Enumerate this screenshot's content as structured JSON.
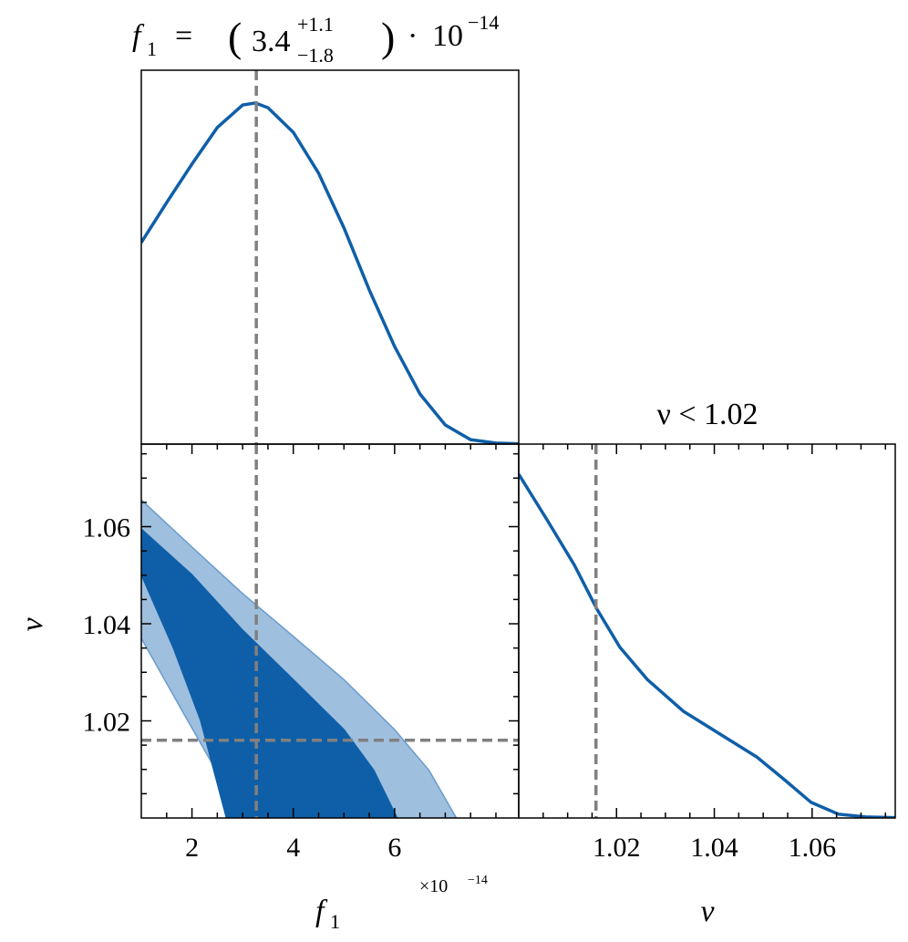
{
  "chart_data": [
    {
      "type": "line",
      "title": {
        "lhs": "f",
        "lhs_sub": "1",
        "eq": "=",
        "open": "(",
        "value": "3.4",
        "upper": "+1.1",
        "lower": "−1.8",
        "close": ")",
        "dot": "·",
        "scale": "10",
        "exponent": "−14"
      },
      "x": [
        1.0,
        1.5,
        2.0,
        2.5,
        3.0,
        3.25,
        3.5,
        4.0,
        4.5,
        5.0,
        5.5,
        6.0,
        6.5,
        7.0,
        7.5,
        8.0,
        8.45
      ],
      "values": [
        0.591,
        0.708,
        0.821,
        0.928,
        0.994,
        1.0,
        0.986,
        0.914,
        0.794,
        0.634,
        0.452,
        0.286,
        0.147,
        0.056,
        0.013,
        0.003,
        0.001
      ],
      "color": "#0f5fa8",
      "xlim": [
        1.0,
        8.45
      ],
      "ylim": [
        0,
        1.096
      ],
      "marker_x": 3.27,
      "marker_color": "#808080"
    },
    {
      "type": "contour",
      "xlabel": {
        "base": "f",
        "sub": "1"
      },
      "ylabel": "ν",
      "offset_label": {
        "base": "×10",
        "exponent": "−14"
      },
      "xlim": [
        1.0,
        8.45
      ],
      "ylim": [
        1.0,
        1.077
      ],
      "xticks": [
        2,
        4,
        6
      ],
      "yticks": [
        1.02,
        1.04,
        1.06
      ],
      "xminor": [
        1.5,
        2.5,
        3,
        3.5,
        4.5,
        5,
        5.5,
        6.5,
        7,
        7.5,
        8
      ],
      "yminor": [
        1.005,
        1.01,
        1.015,
        1.025,
        1.03,
        1.035,
        1.045,
        1.05,
        1.055,
        1.065,
        1.07,
        1.075
      ],
      "series": [
        {
          "color": "#9fbfdf",
          "edge": "#6a9bcc",
          "x": [
            1.0,
            2.0,
            2.98,
            4.0,
            5.0,
            6.0,
            6.68,
            7.22,
            3.07,
            2.53,
            1.81,
            1.0
          ],
          "values": [
            1.0655,
            1.0558,
            1.0464,
            1.0374,
            1.0285,
            1.0182,
            1.0098,
            1.0,
            1.0,
            1.0088,
            1.022,
            1.037
          ]
        },
        {
          "color": "#0f5fa8",
          "edge": "#0f5fa8",
          "x": [
            1.0,
            2.0,
            2.98,
            4.0,
            5.0,
            5.59,
            6.05,
            2.68,
            2.17,
            1.63,
            1.0
          ],
          "values": [
            1.0595,
            1.0501,
            1.0389,
            1.0285,
            1.0182,
            1.0098,
            1.0,
            1.0,
            1.0201,
            1.0351,
            1.0501
          ]
        }
      ],
      "marker_x": 3.27,
      "marker_y": 1.016,
      "marker_color": "#808080"
    },
    {
      "type": "line",
      "title": "ν < 1.02",
      "xlabel": "ν",
      "x": [
        1.0,
        1.0058,
        1.0114,
        1.016,
        1.0207,
        1.0263,
        1.0337,
        1.0412,
        1.0487,
        1.0543,
        1.0598,
        1.0654,
        1.071,
        1.077
      ],
      "values": [
        0.993,
        0.861,
        0.73,
        0.603,
        0.493,
        0.4,
        0.308,
        0.242,
        0.176,
        0.111,
        0.045,
        0.011,
        0.003,
        0.001
      ],
      "color": "#0f5fa8",
      "xlim": [
        1.0,
        1.077
      ],
      "ylim": [
        0,
        1.08
      ],
      "xticks": [
        1.02,
        1.04,
        1.06
      ],
      "xminor": [
        1.005,
        1.01,
        1.015,
        1.025,
        1.03,
        1.035,
        1.045,
        1.05,
        1.055,
        1.065,
        1.07,
        1.075
      ],
      "marker_x": 1.0158,
      "marker_color": "#808080"
    }
  ]
}
